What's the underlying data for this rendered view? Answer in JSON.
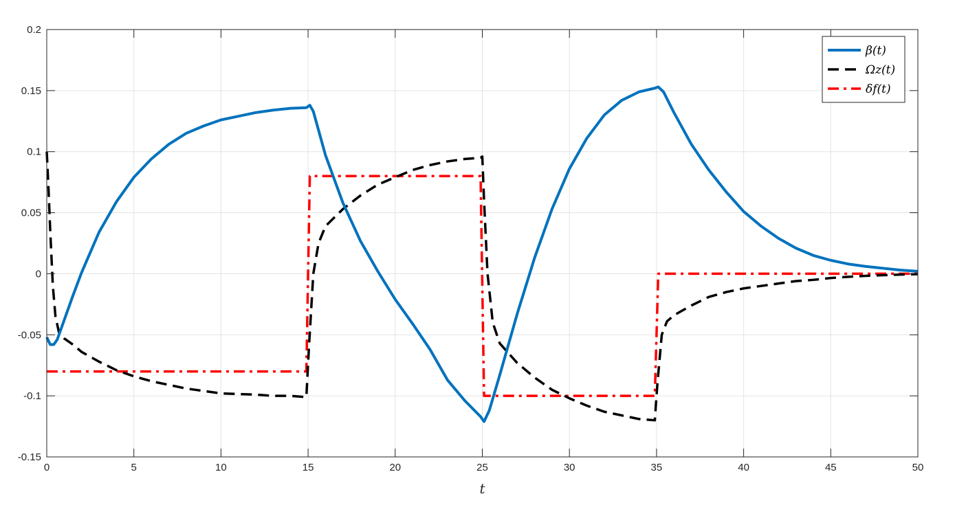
{
  "chart_data": {
    "type": "line",
    "title": "",
    "xlabel": "t",
    "ylabel": "",
    "xlim": [
      0,
      50
    ],
    "ylim": [
      -0.15,
      0.2
    ],
    "grid": true,
    "legend_position": "top-right",
    "x_ticks": [
      "0",
      "5",
      "10",
      "15",
      "20",
      "25",
      "30",
      "35",
      "40",
      "45",
      "50"
    ],
    "y_ticks": [
      "-0.15",
      "-0.1",
      "-0.05",
      "0",
      "0.05",
      "0.1",
      "0.15",
      "0.2"
    ],
    "x_tick_values": [
      0,
      5,
      10,
      15,
      20,
      25,
      30,
      35,
      40,
      45,
      50
    ],
    "y_tick_values": [
      -0.15,
      -0.1,
      -0.05,
      0,
      0.05,
      0.1,
      0.15,
      0.2
    ],
    "series": [
      {
        "name": "β(t)",
        "color": "#0072BD",
        "style": "solid",
        "points": [
          [
            0,
            -0.052
          ],
          [
            0.2,
            -0.058
          ],
          [
            0.4,
            -0.058
          ],
          [
            0.6,
            -0.054
          ],
          [
            1,
            -0.038
          ],
          [
            1.5,
            -0.018
          ],
          [
            2,
            0.001
          ],
          [
            3,
            0.034
          ],
          [
            4,
            0.059
          ],
          [
            5,
            0.079
          ],
          [
            6,
            0.094
          ],
          [
            7,
            0.106
          ],
          [
            8,
            0.115
          ],
          [
            9,
            0.121
          ],
          [
            10,
            0.126
          ],
          [
            11,
            0.129
          ],
          [
            12,
            0.132
          ],
          [
            13,
            0.134
          ],
          [
            14,
            0.1355
          ],
          [
            14.9,
            0.136
          ],
          [
            15.1,
            0.138
          ],
          [
            15.3,
            0.133
          ],
          [
            16,
            0.097
          ],
          [
            17,
            0.058
          ],
          [
            18,
            0.027
          ],
          [
            19,
            0.002
          ],
          [
            20,
            -0.021
          ],
          [
            21,
            -0.041
          ],
          [
            22,
            -0.062
          ],
          [
            23,
            -0.087
          ],
          [
            24,
            -0.104
          ],
          [
            24.9,
            -0.117
          ],
          [
            25.1,
            -0.121
          ],
          [
            25.4,
            -0.112
          ],
          [
            26,
            -0.083
          ],
          [
            27,
            -0.033
          ],
          [
            28,
            0.013
          ],
          [
            29,
            0.053
          ],
          [
            30,
            0.086
          ],
          [
            31,
            0.111
          ],
          [
            32,
            0.13
          ],
          [
            33,
            0.142
          ],
          [
            34,
            0.149
          ],
          [
            34.9,
            0.152
          ],
          [
            35.1,
            0.153
          ],
          [
            35.4,
            0.149
          ],
          [
            36,
            0.132
          ],
          [
            37,
            0.106
          ],
          [
            38,
            0.085
          ],
          [
            39,
            0.067
          ],
          [
            40,
            0.051
          ],
          [
            41,
            0.039
          ],
          [
            42,
            0.029
          ],
          [
            43,
            0.021
          ],
          [
            44,
            0.015
          ],
          [
            45,
            0.011
          ],
          [
            46,
            0.008
          ],
          [
            47,
            0.006
          ],
          [
            48,
            0.0045
          ],
          [
            49,
            0.003
          ],
          [
            50,
            0.002
          ]
        ]
      },
      {
        "name": "Ωz(t)",
        "color": "#000000",
        "style": "dashed",
        "points": [
          [
            0,
            0.1
          ],
          [
            0.1,
            0.07
          ],
          [
            0.2,
            0.035
          ],
          [
            0.35,
            -0.01
          ],
          [
            0.5,
            -0.035
          ],
          [
            0.7,
            -0.048
          ],
          [
            1,
            -0.053
          ],
          [
            1.5,
            -0.058
          ],
          [
            2,
            -0.064
          ],
          [
            3,
            -0.072
          ],
          [
            4,
            -0.079
          ],
          [
            5,
            -0.084
          ],
          [
            6,
            -0.088
          ],
          [
            7,
            -0.091
          ],
          [
            8,
            -0.094
          ],
          [
            9,
            -0.096
          ],
          [
            10,
            -0.098
          ],
          [
            11,
            -0.0985
          ],
          [
            12,
            -0.099
          ],
          [
            13,
            -0.1
          ],
          [
            14,
            -0.1
          ],
          [
            14.9,
            -0.101
          ],
          [
            15.05,
            -0.06
          ],
          [
            15.3,
            0.0
          ],
          [
            15.6,
            0.025
          ],
          [
            16,
            0.039
          ],
          [
            17,
            0.053
          ],
          [
            18,
            0.064
          ],
          [
            19,
            0.073
          ],
          [
            20,
            0.079
          ],
          [
            21,
            0.085
          ],
          [
            22,
            0.089
          ],
          [
            23,
            0.092
          ],
          [
            24,
            0.094
          ],
          [
            24.9,
            0.095
          ],
          [
            25.0,
            0.096
          ],
          [
            25.1,
            0.06
          ],
          [
            25.3,
            0.0
          ],
          [
            25.6,
            -0.04
          ],
          [
            26,
            -0.057
          ],
          [
            27,
            -0.073
          ],
          [
            28,
            -0.085
          ],
          [
            29,
            -0.095
          ],
          [
            30,
            -0.102
          ],
          [
            31,
            -0.108
          ],
          [
            32,
            -0.113
          ],
          [
            33,
            -0.116
          ],
          [
            34,
            -0.119
          ],
          [
            34.9,
            -0.12
          ],
          [
            35.05,
            -0.09
          ],
          [
            35.3,
            -0.05
          ],
          [
            35.6,
            -0.039
          ],
          [
            36,
            -0.034
          ],
          [
            37,
            -0.026
          ],
          [
            38,
            -0.019
          ],
          [
            39,
            -0.015
          ],
          [
            40,
            -0.012
          ],
          [
            41,
            -0.01
          ],
          [
            42,
            -0.008
          ],
          [
            43,
            -0.006
          ],
          [
            44,
            -0.005
          ],
          [
            45,
            -0.0035
          ],
          [
            46,
            -0.0025
          ],
          [
            47,
            -0.0017
          ],
          [
            48,
            -0.0012
          ],
          [
            49,
            -0.0007
          ],
          [
            50,
            -0.0003
          ]
        ]
      },
      {
        "name": "δf(t)",
        "color": "#FF0000",
        "style": "dashdot",
        "points": [
          [
            0,
            -0.08
          ],
          [
            14.9,
            -0.08
          ],
          [
            15.1,
            0.08
          ],
          [
            24.9,
            0.08
          ],
          [
            25.1,
            -0.1
          ],
          [
            34.9,
            -0.1
          ],
          [
            35.1,
            0.0
          ],
          [
            50,
            0.0
          ]
        ]
      }
    ]
  }
}
